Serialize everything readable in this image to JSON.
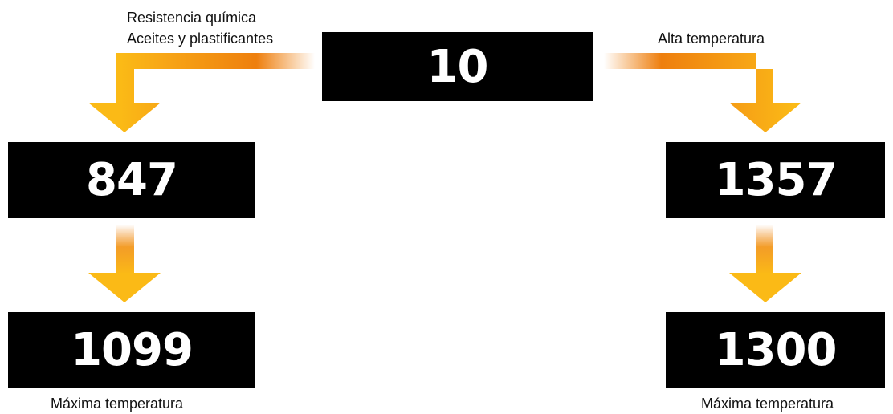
{
  "nodes": {
    "root": "10",
    "left_mid": "847",
    "left_bottom": "1099",
    "right_mid": "1357",
    "right_bottom": "1300"
  },
  "labels": {
    "left_line1": "Resistencia química",
    "left_line2": "Aceites y plastificantes",
    "right": "Alta temperatura",
    "left_bottom": "Máxima temperatura",
    "right_bottom": "Máxima temperatura"
  },
  "colors": {
    "box": "#000000",
    "box_text": "#ffffff",
    "arrow_yellow": "#FBBA16",
    "arrow_orange": "#EE7F0E"
  }
}
